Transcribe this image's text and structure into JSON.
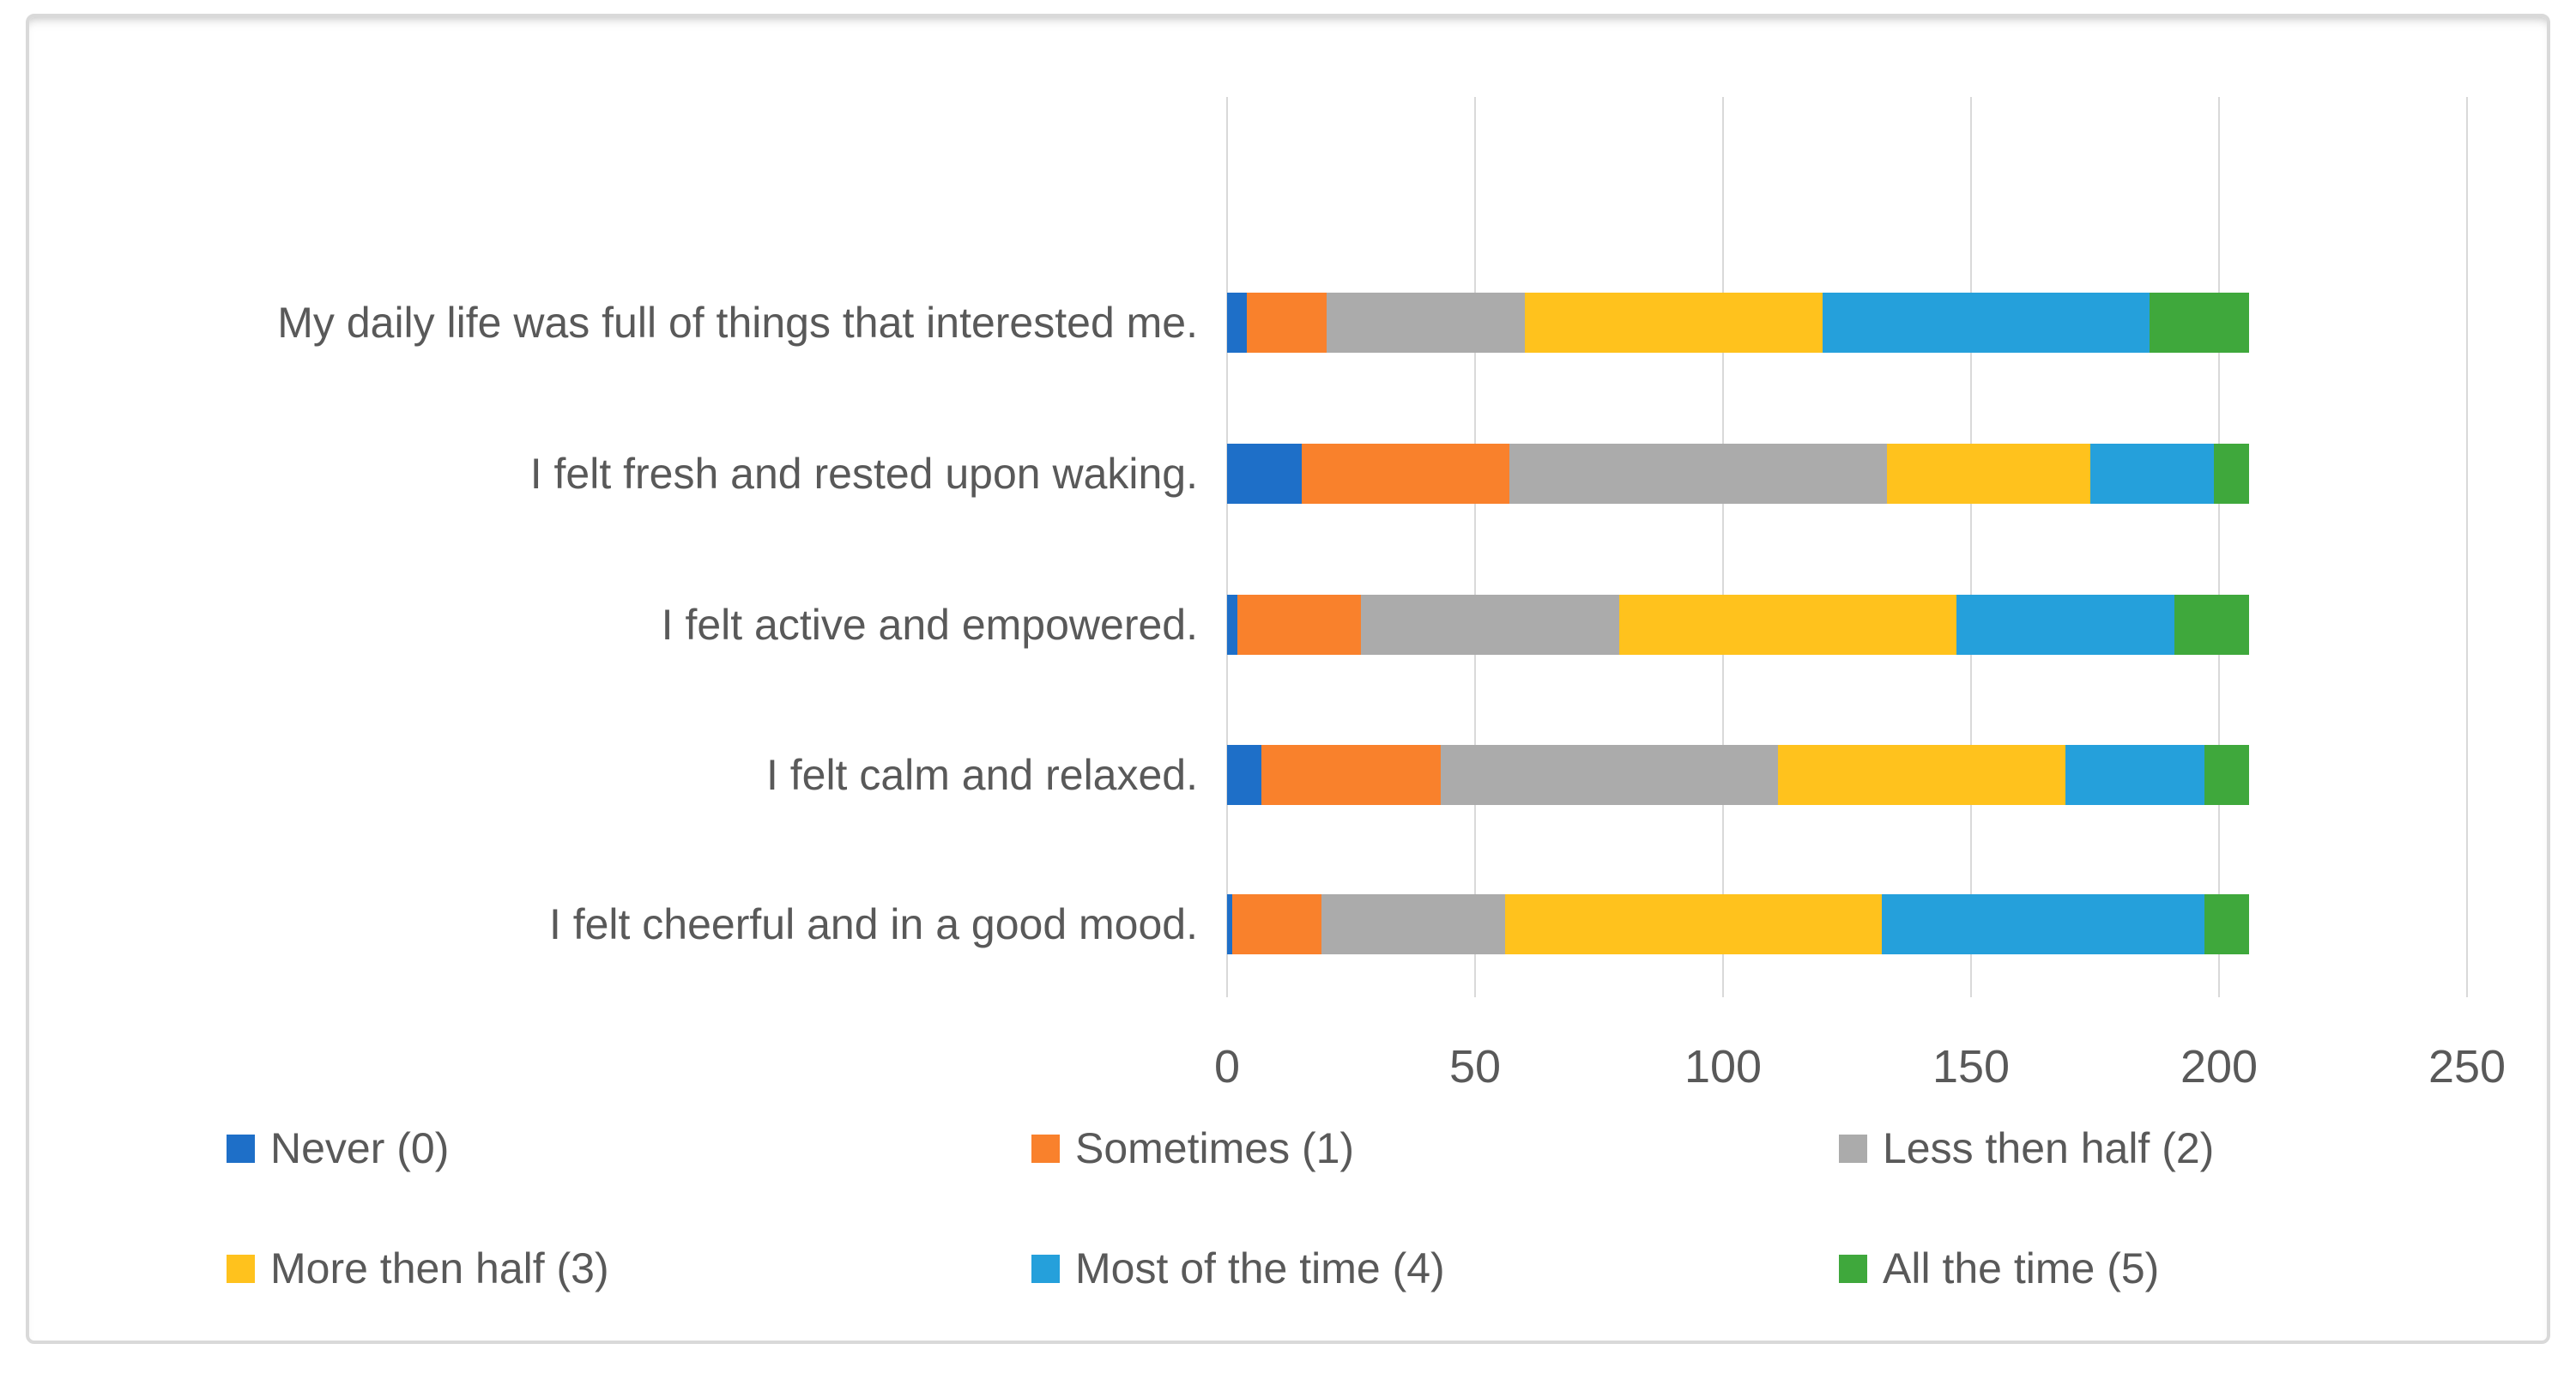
{
  "figure": {
    "background": "#FFFFFF",
    "frame_border_color": "#D9D9D9"
  },
  "chart_data": {
    "type": "bar",
    "orientation": "horizontal",
    "stacked": true,
    "title": "",
    "xlabel": "",
    "ylabel": "",
    "xlim": [
      0,
      250
    ],
    "x_ticks": [
      0,
      50,
      100,
      150,
      200,
      250
    ],
    "grid": "vertical",
    "grid_color": "#D9D9D9",
    "axis_text_color": "#595959",
    "legend_position": "bottom",
    "total_per_category": 206,
    "categories": [
      "My daily life was full of things that interested me.",
      "I felt fresh and rested upon waking.",
      "I felt active and empowered.",
      "I felt calm and relaxed.",
      "I felt cheerful and in a good mood."
    ],
    "series": [
      {
        "name": "Never (0)",
        "color": "#1E6FC8",
        "values": [
          4,
          15,
          2,
          7,
          1
        ]
      },
      {
        "name": "Sometimes (1)",
        "color": "#F9812C",
        "values": [
          16,
          42,
          25,
          36,
          18
        ]
      },
      {
        "name": "Less then half (2)",
        "color": "#ABABAB",
        "values": [
          40,
          76,
          52,
          68,
          37
        ]
      },
      {
        "name": "More then half (3)",
        "color": "#FFC21D",
        "values": [
          60,
          41,
          68,
          58,
          76
        ]
      },
      {
        "name": "Most of the time (4)",
        "color": "#25A0DB",
        "values": [
          66,
          25,
          44,
          28,
          65
        ]
      },
      {
        "name": "All the time (5)",
        "color": "#3FA83C",
        "values": [
          20,
          7,
          15,
          9,
          9
        ]
      }
    ],
    "legend_rows": [
      [
        "Never (0)",
        "Sometimes (1)",
        "Less then half (2)"
      ],
      [
        "More then half (3)",
        "Most of the time (4)",
        "All the time (5)"
      ]
    ]
  }
}
